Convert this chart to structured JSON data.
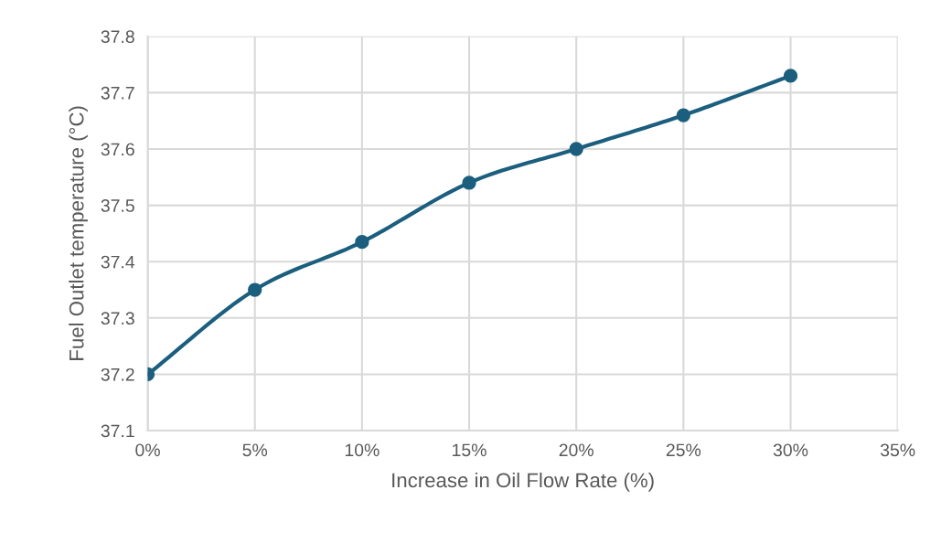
{
  "chart_data": {
    "type": "line",
    "xlabel": "Increase in Oil Flow Rate (%)",
    "ylabel": "Fuel Outlet temperature (°C)",
    "x": [
      0,
      5,
      10,
      15,
      20,
      25,
      30
    ],
    "series": [
      {
        "color": "#1b5e7e",
        "values": [
          37.2,
          37.35,
          37.435,
          37.54,
          37.6,
          37.66,
          37.73
        ]
      }
    ],
    "xlim": [
      0,
      35
    ],
    "xticks": [
      {
        "value": 0,
        "label": "0%"
      },
      {
        "value": 5,
        "label": "5%"
      },
      {
        "value": 10,
        "label": "10%"
      },
      {
        "value": 15,
        "label": "15%"
      },
      {
        "value": 20,
        "label": "20%"
      },
      {
        "value": 25,
        "label": "25%"
      },
      {
        "value": 30,
        "label": "30%"
      },
      {
        "value": 35,
        "label": "35%"
      }
    ],
    "ylim": [
      37.1,
      37.8
    ],
    "yticks": [
      37.1,
      37.2,
      37.3,
      37.4,
      37.5,
      37.6,
      37.7,
      37.8
    ],
    "grid": true,
    "marker": "circle",
    "line_style": "solid"
  }
}
